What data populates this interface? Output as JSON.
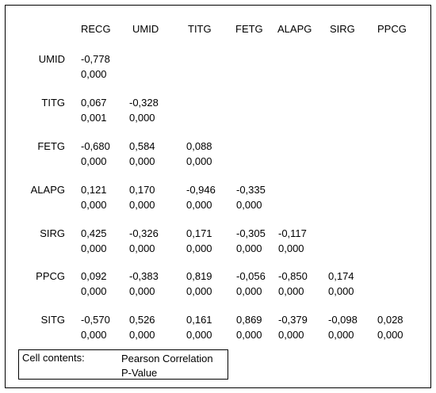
{
  "columns": [
    "RECG",
    "UMID",
    "TITG",
    "FETG",
    "ALAPG",
    "SIRG",
    "PPCG"
  ],
  "rows": [
    {
      "label": "UMID",
      "cells": [
        [
          "-0,778",
          "0,000"
        ]
      ]
    },
    {
      "label": "TITG",
      "cells": [
        [
          "0,067",
          "0,001"
        ],
        [
          "-0,328",
          "0,000"
        ]
      ]
    },
    {
      "label": "FETG",
      "cells": [
        [
          "-0,680",
          "0,000"
        ],
        [
          "0,584",
          "0,000"
        ],
        [
          "0,088",
          "0,000"
        ]
      ]
    },
    {
      "label": "ALAPG",
      "cells": [
        [
          "0,121",
          "0,000"
        ],
        [
          "0,170",
          "0,000"
        ],
        [
          "-0,946",
          "0,000"
        ],
        [
          "-0,335",
          "0,000"
        ]
      ]
    },
    {
      "label": "SIRG",
      "cells": [
        [
          "0,425",
          "0,000"
        ],
        [
          "-0,326",
          "0,000"
        ],
        [
          "0,171",
          "0,000"
        ],
        [
          "-0,305",
          "0,000"
        ],
        [
          "-0,117",
          "0,000"
        ]
      ]
    },
    {
      "label": "PPCG",
      "cells": [
        [
          "0,092",
          "0,000"
        ],
        [
          "-0,383",
          "0,000"
        ],
        [
          "0,819",
          "0,000"
        ],
        [
          "-0,056",
          "0,000"
        ],
        [
          "-0,850",
          "0,000"
        ],
        [
          "0,174",
          "0,000"
        ]
      ]
    },
    {
      "label": "SITG",
      "cells": [
        [
          "-0,570",
          "0,000"
        ],
        [
          "0,526",
          "0,000"
        ],
        [
          "0,161",
          "0,000"
        ],
        [
          "0,869",
          "0,000"
        ],
        [
          "-0,379",
          "0,000"
        ],
        [
          "-0,098",
          "0,000"
        ],
        [
          "0,028",
          "0,000"
        ]
      ]
    }
  ],
  "legend": {
    "label": "Cell contents:",
    "line1": "Pearson Correlation",
    "line2": "P-Value"
  }
}
